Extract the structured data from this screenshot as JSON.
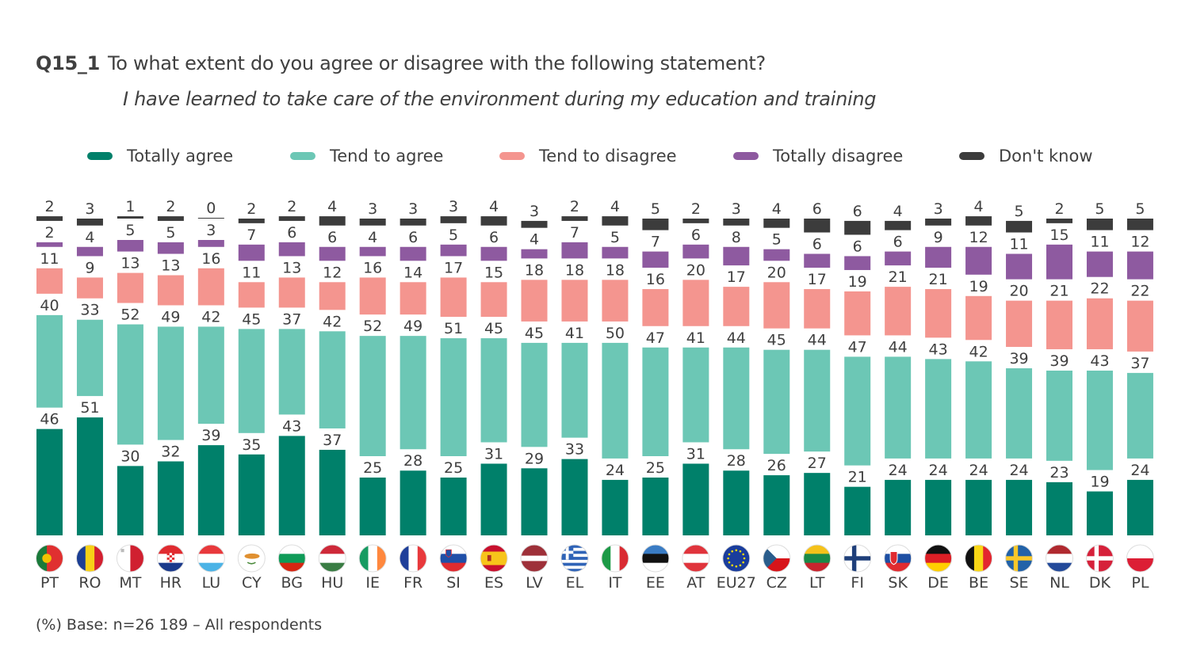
{
  "chart_data": {
    "type": "bar",
    "stacked": true,
    "title_code": "Q15_1",
    "title": "To what extent do you agree or disagree with the following statement?",
    "subtitle": "I have learned to take care of the environment during my education and training",
    "footnote": "(%) Base: n=26 189 – All respondents",
    "unit": "%",
    "legend_position": "top",
    "grid": false,
    "categories": [
      "PT",
      "RO",
      "MT",
      "HR",
      "LU",
      "CY",
      "BG",
      "HU",
      "IE",
      "FR",
      "SI",
      "ES",
      "LV",
      "EL",
      "IT",
      "EE",
      "AT",
      "EU27",
      "CZ",
      "LT",
      "FI",
      "SK",
      "DE",
      "BE",
      "SE",
      "NL",
      "DK",
      "PL"
    ],
    "series": [
      {
        "name": "Totally agree",
        "color": "#00806a",
        "values": [
          46,
          51,
          30,
          32,
          39,
          35,
          43,
          37,
          25,
          28,
          25,
          31,
          29,
          33,
          24,
          25,
          31,
          28,
          26,
          27,
          21,
          24,
          24,
          24,
          24,
          23,
          19,
          24
        ]
      },
      {
        "name": "Tend to agree",
        "color": "#6cc7b5",
        "values": [
          40,
          33,
          52,
          49,
          42,
          45,
          37,
          42,
          52,
          49,
          51,
          45,
          45,
          41,
          50,
          47,
          41,
          44,
          45,
          44,
          47,
          44,
          43,
          42,
          39,
          39,
          43,
          37
        ]
      },
      {
        "name": "Tend to disagree",
        "color": "#f4958f",
        "values": [
          11,
          9,
          13,
          13,
          16,
          11,
          13,
          12,
          16,
          14,
          17,
          15,
          18,
          18,
          18,
          16,
          20,
          17,
          20,
          17,
          19,
          21,
          21,
          19,
          20,
          21,
          22,
          22
        ]
      },
      {
        "name": "Totally disagree",
        "color": "#8e5aa0",
        "values": [
          2,
          4,
          5,
          5,
          3,
          7,
          6,
          6,
          4,
          6,
          5,
          6,
          4,
          7,
          5,
          7,
          6,
          8,
          5,
          6,
          6,
          6,
          9,
          12,
          11,
          15,
          11,
          12
        ]
      },
      {
        "name": "Don't know",
        "color": "#3c3c3c",
        "values": [
          2,
          3,
          1,
          2,
          0,
          2,
          2,
          4,
          3,
          3,
          3,
          4,
          3,
          2,
          4,
          5,
          2,
          3,
          4,
          6,
          6,
          4,
          3,
          4,
          5,
          2,
          5,
          5
        ]
      }
    ]
  },
  "flags": {
    "PT": "flag-portugal",
    "RO": "flag-romania",
    "MT": "flag-malta",
    "HR": "flag-croatia",
    "LU": "flag-luxembourg",
    "CY": "flag-cyprus",
    "BG": "flag-bulgaria",
    "HU": "flag-hungary",
    "IE": "flag-ireland",
    "FR": "flag-france",
    "SI": "flag-slovenia",
    "ES": "flag-spain",
    "LV": "flag-latvia",
    "EL": "flag-greece",
    "IT": "flag-italy",
    "EE": "flag-estonia",
    "AT": "flag-austria",
    "EU27": "flag-eu",
    "CZ": "flag-czechia",
    "LT": "flag-lithuania",
    "FI": "flag-finland",
    "SK": "flag-slovakia",
    "DE": "flag-germany",
    "BE": "flag-belgium",
    "SE": "flag-sweden",
    "NL": "flag-netherlands",
    "DK": "flag-denmark",
    "PL": "flag-poland"
  },
  "colors": {
    "text": "#404040"
  }
}
